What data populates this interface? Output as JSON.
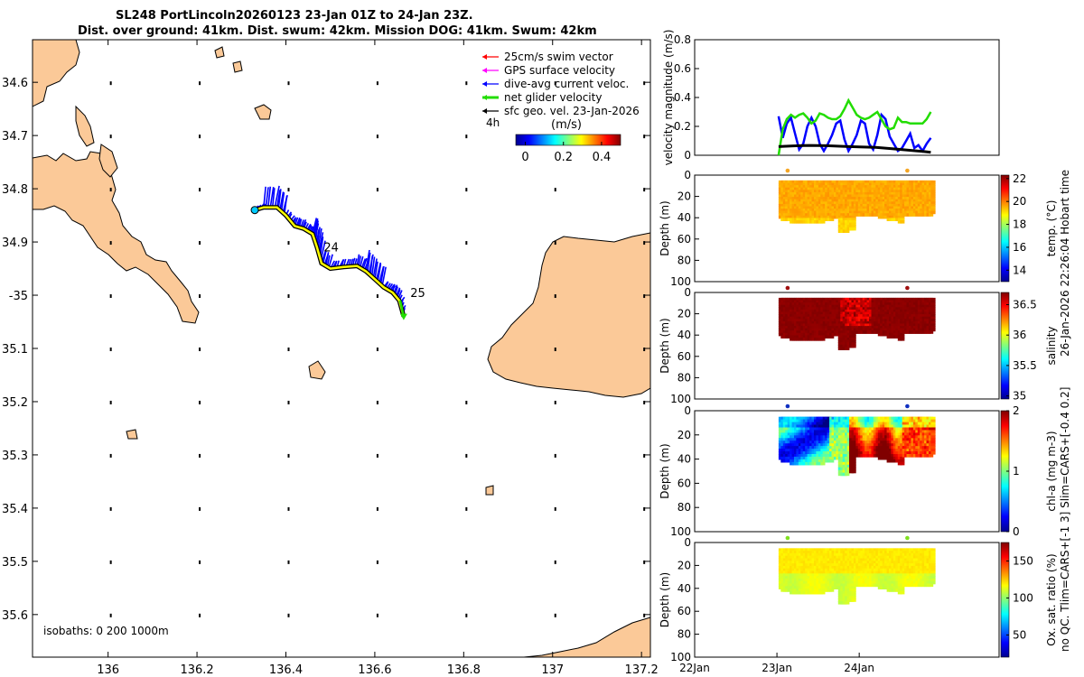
{
  "header": {
    "title_line1": "SL248 PortLincoln20260123 23-Jan 01Z to 24-Jan 23Z.",
    "title_line2": "Dist. over ground: 41km. Dist. swum: 42km. Mission DOG: 41km. Swum: 42km"
  },
  "colors": {
    "land": "#fbc998",
    "track": "#ffff00",
    "current": "#0000ff",
    "net_velocity": "#22dd00",
    "swim": "#ff0000",
    "gps": "#ff00ff",
    "sfc_geo": "#000000"
  },
  "chart_data": [
    {
      "type": "map",
      "xlabel_ticks": [
        "136",
        "136.2",
        "136.4",
        "136.6",
        "136.8",
        "137",
        "137.2"
      ],
      "x_ticks": [
        136.0,
        136.2,
        136.4,
        136.6,
        136.8,
        137.0,
        137.2
      ],
      "xlim": [
        135.83,
        137.22
      ],
      "ylabel_ticks": [
        "34.6",
        "34.7",
        "34.8",
        "34.9",
        "-35",
        "35.1",
        "35.2",
        "35.3",
        "35.4",
        "35.5",
        "35.6"
      ],
      "y_ticks": [
        34.6,
        34.7,
        34.8,
        34.9,
        35.0,
        35.1,
        35.2,
        35.3,
        35.4,
        35.5,
        35.6
      ],
      "ylim": [
        34.52,
        35.68
      ],
      "legend": {
        "items": [
          {
            "label": "25cm/s swim vector",
            "color": "#ff0000"
          },
          {
            "label": "GPS surface velocity",
            "color": "#ff00ff"
          },
          {
            "label": "dive-avg current veloc.",
            "color": "#0000ff"
          },
          {
            "label": "net glider velocity",
            "color": "#22dd00"
          },
          {
            "label": "sfc geo. vel. 23-Jan-2026",
            "color": "#000000"
          }
        ],
        "timespan_label": "4h",
        "colorbar_title": "(m/s)",
        "colorbar_ticks": [
          "0",
          "0.2",
          "0.4"
        ],
        "colorbar_values": [
          0,
          0.2,
          0.4
        ],
        "colorbar_range": [
          -0.05,
          0.5
        ]
      },
      "track": {
        "lon": [
          136.33,
          136.35,
          136.38,
          136.4,
          136.42,
          136.44,
          136.46,
          136.47,
          136.48,
          136.5,
          136.53,
          136.56,
          136.58,
          136.6,
          136.62,
          136.64,
          136.655,
          136.665
        ],
        "lat": [
          34.84,
          34.835,
          34.835,
          34.85,
          34.87,
          34.875,
          34.885,
          34.91,
          34.94,
          34.95,
          34.947,
          34.945,
          34.955,
          34.97,
          34.985,
          34.995,
          35.01,
          35.04
        ]
      },
      "day_labels": [
        {
          "text": "24",
          "lon": 136.485,
          "lat": 34.918
        },
        {
          "text": "25",
          "lon": 136.68,
          "lat": 35.003
        }
      ],
      "isobath_label": "isobaths: 0   200  1000m"
    },
    {
      "type": "line",
      "ylabel": "velocity magnitude (m/s)",
      "ylim": [
        0,
        0.8
      ],
      "yticks": [
        "0",
        "0.2",
        "0.4",
        "0.6",
        "0.8"
      ],
      "ytick_values": [
        0,
        0.2,
        0.4,
        0.6,
        0.8
      ],
      "xlim_days": [
        0,
        3.7
      ],
      "series": [
        {
          "name": "dive-avg current",
          "color": "#0000ff",
          "x": [
            1.02,
            1.07,
            1.12,
            1.17,
            1.22,
            1.27,
            1.32,
            1.37,
            1.42,
            1.47,
            1.52,
            1.57,
            1.62,
            1.67,
            1.72,
            1.77,
            1.82,
            1.87,
            1.92,
            1.97,
            2.02,
            2.07,
            2.12,
            2.17,
            2.22,
            2.27,
            2.32,
            2.37,
            2.42,
            2.47,
            2.52,
            2.57,
            2.62,
            2.67,
            2.72,
            2.77,
            2.82,
            2.87
          ],
          "y": [
            0.27,
            0.12,
            0.22,
            0.26,
            0.15,
            0.04,
            0.08,
            0.2,
            0.26,
            0.2,
            0.08,
            0.03,
            0.08,
            0.14,
            0.22,
            0.24,
            0.11,
            0.03,
            0.08,
            0.14,
            0.24,
            0.22,
            0.08,
            0.04,
            0.14,
            0.28,
            0.25,
            0.13,
            0.08,
            0.03,
            0.05,
            0.1,
            0.15,
            0.05,
            0.07,
            0.03,
            0.08,
            0.12
          ]
        },
        {
          "name": "net glider velocity",
          "color": "#22dd00",
          "x": [
            1.02,
            1.07,
            1.12,
            1.17,
            1.22,
            1.27,
            1.32,
            1.37,
            1.42,
            1.47,
            1.52,
            1.57,
            1.62,
            1.67,
            1.72,
            1.77,
            1.82,
            1.87,
            1.92,
            1.97,
            2.02,
            2.07,
            2.12,
            2.17,
            2.22,
            2.27,
            2.32,
            2.37,
            2.42,
            2.47,
            2.52,
            2.57,
            2.62,
            2.67,
            2.72,
            2.77,
            2.82,
            2.87
          ],
          "y": [
            0.0,
            0.18,
            0.25,
            0.28,
            0.26,
            0.28,
            0.29,
            0.26,
            0.22,
            0.24,
            0.29,
            0.28,
            0.26,
            0.25,
            0.25,
            0.27,
            0.32,
            0.38,
            0.33,
            0.28,
            0.26,
            0.25,
            0.26,
            0.28,
            0.3,
            0.25,
            0.2,
            0.18,
            0.19,
            0.26,
            0.23,
            0.23,
            0.22,
            0.22,
            0.22,
            0.22,
            0.25,
            0.3
          ]
        },
        {
          "name": "sfc geo. vel.",
          "color": "#000000",
          "x": [
            1.02,
            1.2,
            1.4,
            1.6,
            1.8,
            2.0,
            2.2,
            2.4,
            2.6,
            2.8,
            2.87
          ],
          "y": [
            0.06,
            0.065,
            0.068,
            0.066,
            0.062,
            0.058,
            0.055,
            0.045,
            0.035,
            0.025,
            0.02
          ]
        }
      ]
    },
    {
      "type": "heatmap",
      "ylabel": "Depth (m)",
      "yticks": [
        "0",
        "20",
        "40",
        "60",
        "80",
        "100"
      ],
      "ytick_values": [
        0,
        20,
        40,
        60,
        80,
        100
      ],
      "ylim": [
        0,
        100
      ],
      "colorbar_label": "temp. (°C)",
      "colorbar_ticks": [
        "14",
        "16",
        "18",
        "20",
        "22"
      ],
      "colorbar_values": [
        14,
        16,
        18,
        20,
        22
      ],
      "colorbar_range": [
        13,
        22.3
      ],
      "marker_color": "#f5a623",
      "data_x_days": [
        1.02,
        2.87
      ],
      "data_depth_range": [
        5,
        55
      ],
      "dominant_value": 19.6
    },
    {
      "type": "heatmap",
      "ylabel": "Depth (m)",
      "yticks": [
        "0",
        "20",
        "40",
        "60",
        "80",
        "100"
      ],
      "ytick_values": [
        0,
        20,
        40,
        60,
        80,
        100
      ],
      "ylim": [
        0,
        100
      ],
      "colorbar_label": "salinity",
      "colorbar_ticks": [
        "35",
        "35.5",
        "36",
        "36.5"
      ],
      "colorbar_values": [
        35,
        35.5,
        36,
        36.5
      ],
      "colorbar_range": [
        34.95,
        36.7
      ],
      "marker_color": "#a01010",
      "data_x_days": [
        1.02,
        2.87
      ],
      "data_depth_range": [
        5,
        55
      ],
      "dominant_value": 36.7
    },
    {
      "type": "heatmap",
      "ylabel": "Depth (m)",
      "yticks": [
        "0",
        "20",
        "40",
        "60",
        "80",
        "100"
      ],
      "ytick_values": [
        0,
        20,
        40,
        60,
        80,
        100
      ],
      "ylim": [
        0,
        100
      ],
      "colorbar_label": "chl-a (mg m-3)",
      "colorbar_ticks": [
        "0",
        "1",
        "2"
      ],
      "colorbar_values": [
        0,
        1,
        2
      ],
      "colorbar_range": [
        0,
        2
      ],
      "marker_color": "#1030c0",
      "data_x_days": [
        1.02,
        2.87
      ],
      "data_depth_range": [
        5,
        55
      ]
    },
    {
      "type": "heatmap",
      "ylabel": "Depth (m)",
      "yticks": [
        "0",
        "20",
        "40",
        "60",
        "80",
        "100"
      ],
      "ytick_values": [
        0,
        20,
        40,
        60,
        80,
        100
      ],
      "ylim": [
        0,
        100
      ],
      "xticks": [
        "22Jan",
        "23Jan",
        "24Jan"
      ],
      "xtick_days": [
        0,
        1,
        2
      ],
      "colorbar_label": "Ox. sat. ratio (%)",
      "colorbar_ticks": [
        "50",
        "100",
        "150"
      ],
      "colorbar_values": [
        50,
        100,
        150
      ],
      "colorbar_range": [
        20,
        175
      ],
      "marker_color": "#80e020",
      "data_x_days": [
        1.02,
        2.87
      ],
      "data_depth_range": [
        5,
        55
      ],
      "dominant_value": 120
    }
  ],
  "right_label_1": "26-Jan-2026 22:26:04 Hobart time",
  "right_label_2": "no QC. Tlim=CARS+[-1 3] Slim=CARS+[-0.4 0.2]"
}
